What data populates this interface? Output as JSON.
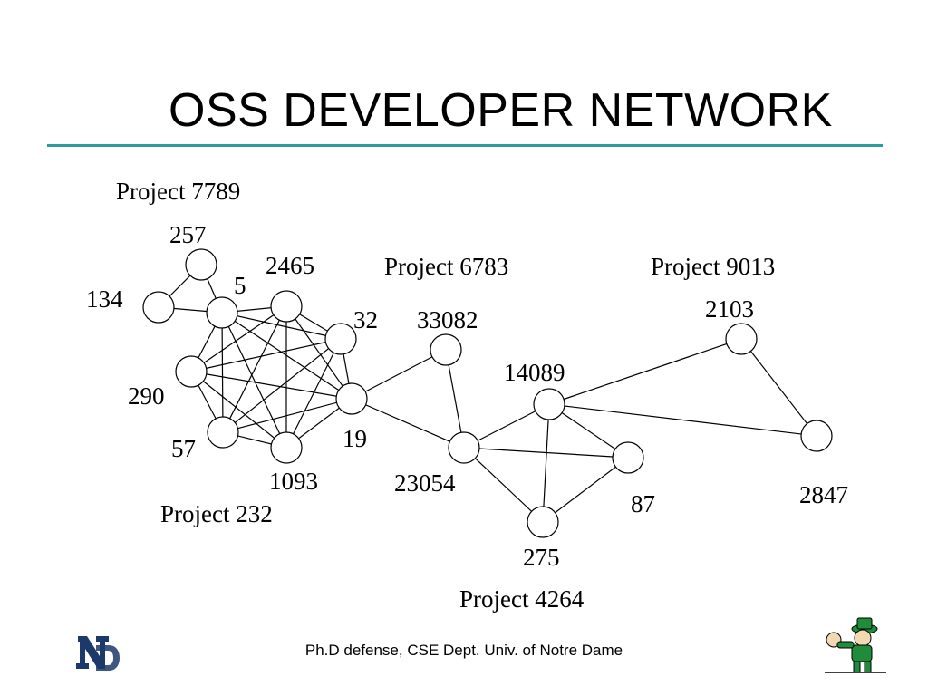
{
  "slide": {
    "title": "OSS DEVELOPER NETWORK",
    "footer": "Ph.D defense, CSE Dept. Univ. of Notre Dame"
  },
  "colors": {
    "rule": "#2a9c9c",
    "logo": "#1b3a6b",
    "mascot_green": "#1e8c3a"
  },
  "projects": [
    {
      "id": "p7789",
      "label": "Project 7789"
    },
    {
      "id": "p232",
      "label": "Project 232"
    },
    {
      "id": "p6783",
      "label": "Project 6783"
    },
    {
      "id": "p4264",
      "label": "Project 4264"
    },
    {
      "id": "p9013",
      "label": "Project 9013"
    }
  ],
  "nodes": [
    {
      "id": "257",
      "label": "257"
    },
    {
      "id": "134",
      "label": "134"
    },
    {
      "id": "5",
      "label": "5"
    },
    {
      "id": "2465",
      "label": "2465"
    },
    {
      "id": "32",
      "label": "32"
    },
    {
      "id": "290",
      "label": "290"
    },
    {
      "id": "19",
      "label": "19"
    },
    {
      "id": "57",
      "label": "57"
    },
    {
      "id": "1093",
      "label": "1093"
    },
    {
      "id": "33082",
      "label": "33082"
    },
    {
      "id": "23054",
      "label": "23054"
    },
    {
      "id": "14089",
      "label": "14089"
    },
    {
      "id": "87",
      "label": "87"
    },
    {
      "id": "275",
      "label": "275"
    },
    {
      "id": "2103",
      "label": "2103"
    },
    {
      "id": "2847",
      "label": "2847"
    }
  ],
  "edges": [
    [
      "257",
      "134"
    ],
    [
      "257",
      "5"
    ],
    [
      "134",
      "5"
    ],
    [
      "5",
      "2465"
    ],
    [
      "5",
      "32"
    ],
    [
      "5",
      "290"
    ],
    [
      "5",
      "19"
    ],
    [
      "5",
      "57"
    ],
    [
      "5",
      "1093"
    ],
    [
      "2465",
      "32"
    ],
    [
      "2465",
      "290"
    ],
    [
      "2465",
      "19"
    ],
    [
      "2465",
      "57"
    ],
    [
      "2465",
      "1093"
    ],
    [
      "32",
      "290"
    ],
    [
      "32",
      "19"
    ],
    [
      "32",
      "57"
    ],
    [
      "32",
      "1093"
    ],
    [
      "290",
      "19"
    ],
    [
      "290",
      "57"
    ],
    [
      "290",
      "1093"
    ],
    [
      "19",
      "57"
    ],
    [
      "19",
      "1093"
    ],
    [
      "57",
      "1093"
    ],
    [
      "19",
      "33082"
    ],
    [
      "19",
      "23054"
    ],
    [
      "33082",
      "23054"
    ],
    [
      "23054",
      "14089"
    ],
    [
      "23054",
      "87"
    ],
    [
      "23054",
      "275"
    ],
    [
      "14089",
      "87"
    ],
    [
      "14089",
      "275"
    ],
    [
      "87",
      "275"
    ],
    [
      "14089",
      "2103"
    ],
    [
      "14089",
      "2847"
    ],
    [
      "2103",
      "2847"
    ]
  ]
}
